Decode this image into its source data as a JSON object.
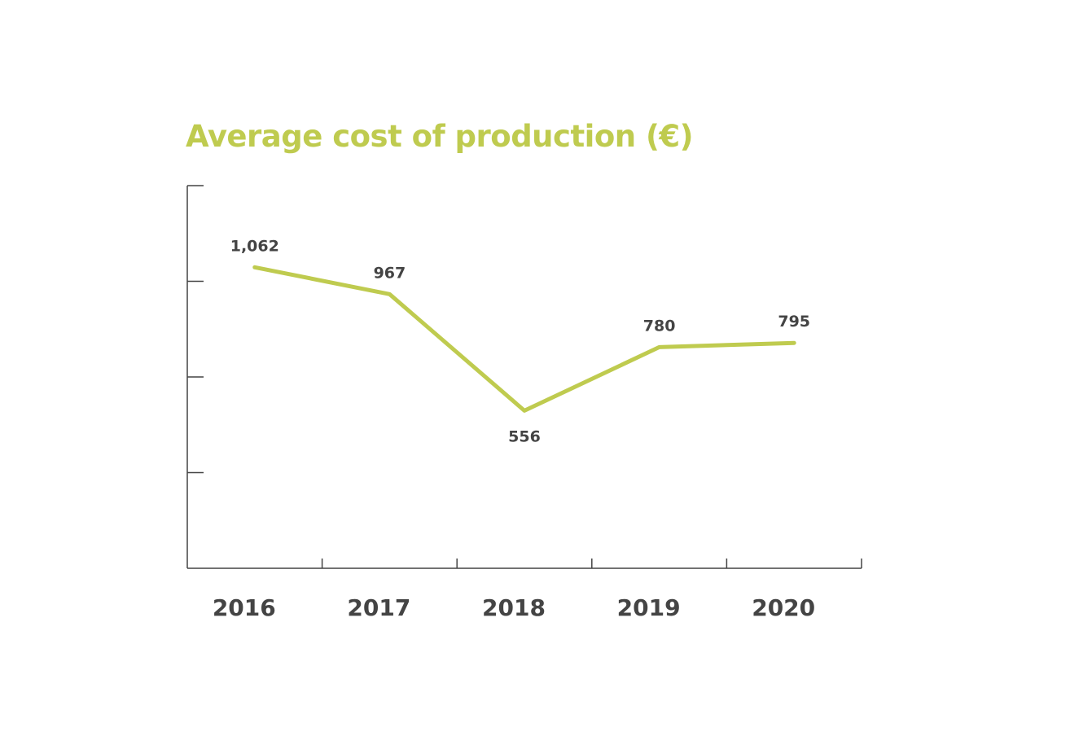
{
  "chart_data": {
    "type": "line",
    "title": "Average cost of production (€)",
    "categories": [
      "2016",
      "2017",
      "2018",
      "2019",
      "2020"
    ],
    "series": [
      {
        "values": [
          1062,
          967,
          556,
          780,
          795
        ],
        "data_labels": [
          "1,062",
          "967",
          "556",
          "780",
          "795"
        ]
      }
    ],
    "ylim": [
      0,
      1350
    ],
    "y_ticks": [
      0,
      337.5,
      675,
      1012.5,
      1350
    ],
    "grid": false,
    "legend": "none",
    "colors": {
      "line": "#bfcb4f",
      "title": "#bfcb4f",
      "text": "#444444",
      "axis": "#444444"
    }
  }
}
